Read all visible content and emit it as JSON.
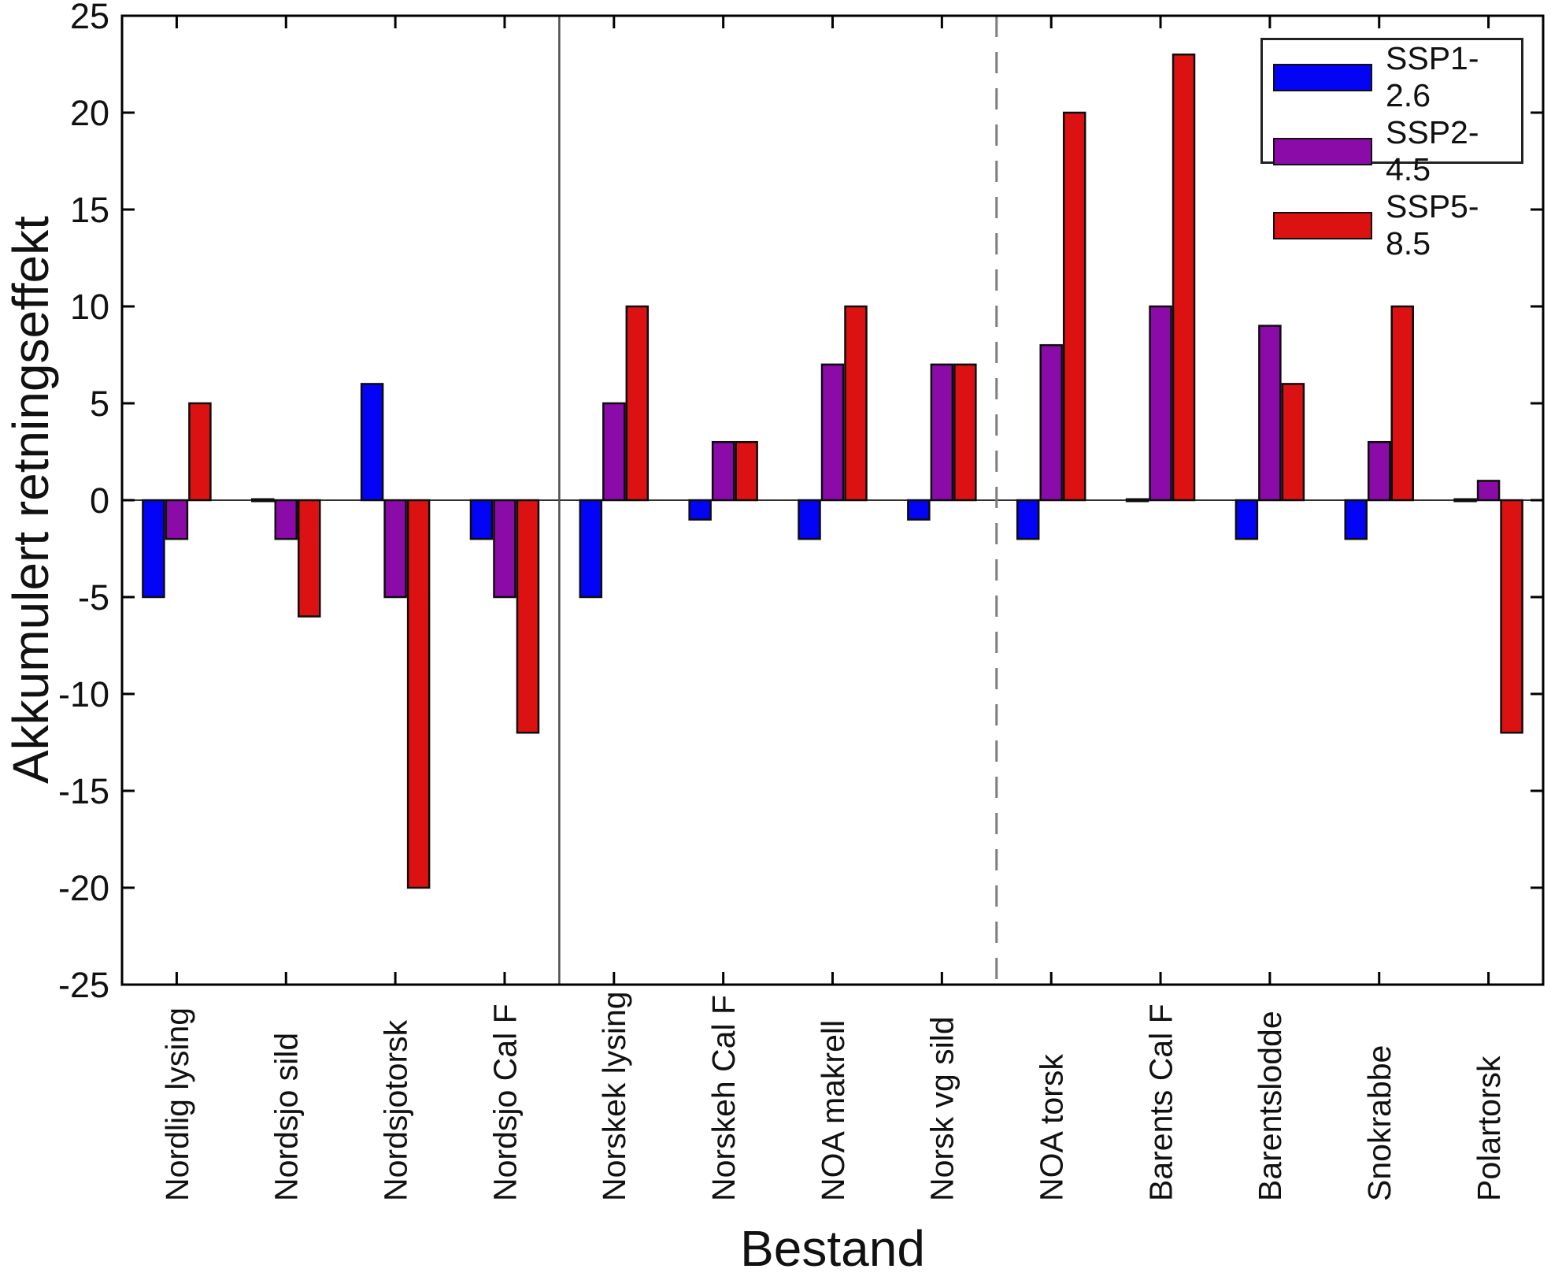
{
  "figure": {
    "title": ""
  },
  "chart_data": {
    "type": "bar",
    "title": "",
    "xlabel": "Bestand",
    "ylabel": "Akkumulert retningseffekt",
    "ylim": [
      -25,
      25
    ],
    "yticks": [
      -25,
      -20,
      -15,
      -10,
      -5,
      0,
      5,
      10,
      15,
      20,
      25
    ],
    "grid": false,
    "legend_position": "top-right",
    "categories": [
      "Nordlig lysing",
      "Nordsjo sild",
      "Nordsjotorsk",
      "Nordsjo Cal F",
      "Norskek lysing",
      "Norskeh Cal F",
      "NOA makrell",
      "Norsk vg sild",
      "NOA torsk",
      "Barents Cal F",
      "Barentslodde",
      "Snokrabbe",
      "Polartorsk"
    ],
    "series": [
      {
        "name": "SSP1-2.6",
        "color": "#0303F5",
        "values": [
          -5,
          0,
          6,
          -2,
          -5,
          -1,
          -2,
          -1,
          -2,
          0,
          -2,
          -2,
          0
        ]
      },
      {
        "name": "SSP2-4.5",
        "color": "#8A0BA8",
        "values": [
          -2,
          -2,
          -5,
          -5,
          5,
          3,
          7,
          7,
          8,
          10,
          9,
          3,
          1
        ]
      },
      {
        "name": "SSP5-8.5",
        "color": "#DC1111",
        "values": [
          5,
          -6,
          -20,
          -12,
          10,
          3,
          10,
          7,
          20,
          23,
          6,
          10,
          -12
        ]
      }
    ],
    "group_dividers": [
      {
        "after_index": 3,
        "style": "solid"
      },
      {
        "after_index": 7,
        "style": "dashed"
      }
    ]
  }
}
